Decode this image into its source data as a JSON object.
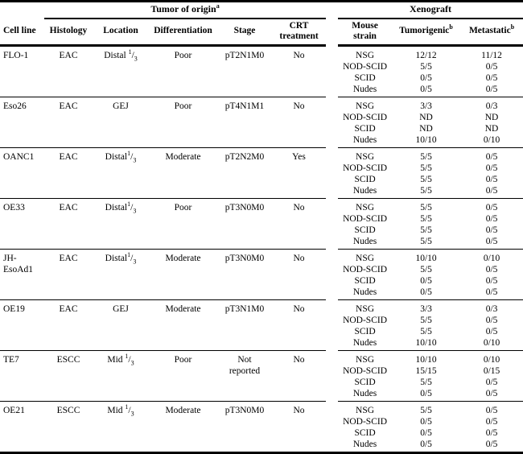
{
  "table": {
    "cell_line_header": "Cell line",
    "groups": [
      {
        "label": "Tumor of origin",
        "sup": "a"
      },
      {
        "label": "Xenograft",
        "sup": ""
      }
    ],
    "tumor_columns": [
      "Histology",
      "Location",
      "Differentiation",
      "Stage",
      "CRT treatment"
    ],
    "xenograft_columns": [
      {
        "label": "Mouse strain",
        "sup": ""
      },
      {
        "label": "Tumorigenic",
        "sup": "b"
      },
      {
        "label": "Metastatic",
        "sup": "b"
      }
    ],
    "rows": [
      {
        "cell_line": "FLO-1",
        "histology": "EAC",
        "location": {
          "text": "Distal ",
          "frac": "1/3"
        },
        "differentiation": "Poor",
        "stage": "pT2N1M0",
        "crt_treatment": "No",
        "xenograft": [
          {
            "strain": "NSG",
            "tumorigenic": "12/12",
            "metastatic": "11/12"
          },
          {
            "strain": "NOD-SCID",
            "tumorigenic": "5/5",
            "metastatic": "0/5"
          },
          {
            "strain": "SCID",
            "tumorigenic": "0/5",
            "metastatic": "0/5"
          },
          {
            "strain": "Nudes",
            "tumorigenic": "0/5",
            "metastatic": "0/5"
          }
        ]
      },
      {
        "cell_line": "Eso26",
        "histology": "EAC",
        "location": {
          "text": "GEJ",
          "frac": ""
        },
        "differentiation": "Poor",
        "stage": "pT4N1M1",
        "crt_treatment": "No",
        "xenograft": [
          {
            "strain": "NSG",
            "tumorigenic": "3/3",
            "metastatic": "0/3"
          },
          {
            "strain": "NOD-SCID",
            "tumorigenic": "ND",
            "metastatic": "ND"
          },
          {
            "strain": "SCID",
            "tumorigenic": "ND",
            "metastatic": "ND"
          },
          {
            "strain": "Nudes",
            "tumorigenic": "10/10",
            "metastatic": "0/10"
          }
        ]
      },
      {
        "cell_line": "OANC1",
        "histology": "EAC",
        "location": {
          "text": "Distal",
          "frac": "1/3"
        },
        "differentiation": "Moderate",
        "stage": "pT2N2M0",
        "crt_treatment": "Yes",
        "xenograft": [
          {
            "strain": "NSG",
            "tumorigenic": "5/5",
            "metastatic": "0/5"
          },
          {
            "strain": "NOD-SCID",
            "tumorigenic": "5/5",
            "metastatic": "0/5"
          },
          {
            "strain": "SCID",
            "tumorigenic": "5/5",
            "metastatic": "0/5"
          },
          {
            "strain": "Nudes",
            "tumorigenic": "5/5",
            "metastatic": "0/5"
          }
        ]
      },
      {
        "cell_line": "OE33",
        "histology": "EAC",
        "location": {
          "text": "Distal",
          "frac": "1/3"
        },
        "differentiation": "Poor",
        "stage": "pT3N0M0",
        "crt_treatment": "No",
        "xenograft": [
          {
            "strain": "NSG",
            "tumorigenic": "5/5",
            "metastatic": "0/5"
          },
          {
            "strain": "NOD-SCID",
            "tumorigenic": "5/5",
            "metastatic": "0/5"
          },
          {
            "strain": "SCID",
            "tumorigenic": "5/5",
            "metastatic": "0/5"
          },
          {
            "strain": "Nudes",
            "tumorigenic": "5/5",
            "metastatic": "0/5"
          }
        ]
      },
      {
        "cell_line": "JH-EsoAd1",
        "histology": "EAC",
        "location": {
          "text": "Distal",
          "frac": "1/3"
        },
        "differentiation": "Moderate",
        "stage": "pT3N0M0",
        "crt_treatment": "No",
        "xenograft": [
          {
            "strain": "NSG",
            "tumorigenic": "10/10",
            "metastatic": "0/10"
          },
          {
            "strain": "NOD-SCID",
            "tumorigenic": "5/5",
            "metastatic": "0/5"
          },
          {
            "strain": "SCID",
            "tumorigenic": "0/5",
            "metastatic": "0/5"
          },
          {
            "strain": "Nudes",
            "tumorigenic": "0/5",
            "metastatic": "0/5"
          }
        ]
      },
      {
        "cell_line": "OE19",
        "histology": "EAC",
        "location": {
          "text": "GEJ",
          "frac": ""
        },
        "differentiation": "Moderate",
        "stage": "pT3N1M0",
        "crt_treatment": "No",
        "xenograft": [
          {
            "strain": "NSG",
            "tumorigenic": "3/3",
            "metastatic": "0/3"
          },
          {
            "strain": "NOD-SCID",
            "tumorigenic": "5/5",
            "metastatic": "0/5"
          },
          {
            "strain": "SCID",
            "tumorigenic": "5/5",
            "metastatic": "0/5"
          },
          {
            "strain": "Nudes",
            "tumorigenic": "10/10",
            "metastatic": "0/10"
          }
        ]
      },
      {
        "cell_line": "TE7",
        "histology": "ESCC",
        "location": {
          "text": "Mid ",
          "frac": "1/3"
        },
        "differentiation": "Poor",
        "stage": "Not reported",
        "crt_treatment": "No",
        "xenograft": [
          {
            "strain": "NSG",
            "tumorigenic": "10/10",
            "metastatic": "0/10"
          },
          {
            "strain": "NOD-SCID",
            "tumorigenic": "15/15",
            "metastatic": "0/15"
          },
          {
            "strain": "SCID",
            "tumorigenic": "5/5",
            "metastatic": "0/5"
          },
          {
            "strain": "Nudes",
            "tumorigenic": "0/5",
            "metastatic": "0/5"
          }
        ]
      },
      {
        "cell_line": "OE21",
        "histology": "ESCC",
        "location": {
          "text": "Mid ",
          "frac": "1/3"
        },
        "differentiation": "Moderate",
        "stage": "pT3N0M0",
        "crt_treatment": "No",
        "xenograft": [
          {
            "strain": "NSG",
            "tumorigenic": "5/5",
            "metastatic": "0/5"
          },
          {
            "strain": "NOD-SCID",
            "tumorigenic": "0/5",
            "metastatic": "0/5"
          },
          {
            "strain": "SCID",
            "tumorigenic": "0/5",
            "metastatic": "0/5"
          },
          {
            "strain": "Nudes",
            "tumorigenic": "0/5",
            "metastatic": "0/5"
          }
        ]
      }
    ]
  }
}
